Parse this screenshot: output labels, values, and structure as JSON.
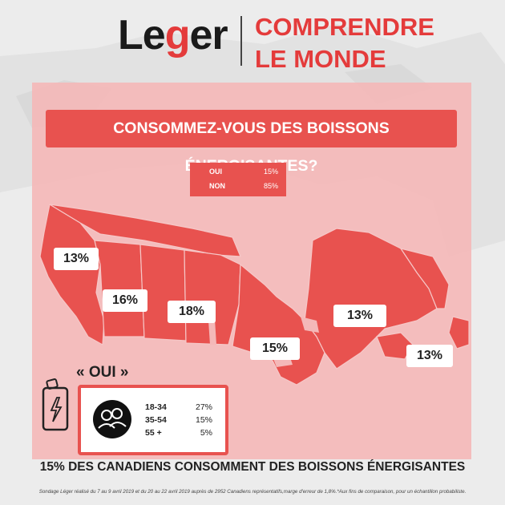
{
  "header": {
    "logo_prefix": "Le",
    "logo_accent": "g",
    "logo_suffix": "er",
    "tagline_line1": "COMPRENDRE",
    "tagline_line2": "LE MONDE",
    "brand_color": "#e43b3b"
  },
  "question": "CONSOMMEZ-VOUS DES BOISSONS ÉNERGISANTES?",
  "summary": [
    {
      "label": "OUI",
      "value": "15%"
    },
    {
      "label": "NON",
      "value": "85%"
    }
  ],
  "regions": [
    {
      "name": "british-columbia",
      "value": "13%"
    },
    {
      "name": "alberta",
      "value": "16%"
    },
    {
      "name": "saskatchewan-manitoba",
      "value": "18%"
    },
    {
      "name": "ontario",
      "value": "15%"
    },
    {
      "name": "quebec",
      "value": "13%"
    },
    {
      "name": "atlantic",
      "value": "13%"
    }
  ],
  "oui_title": "« OUI »",
  "age_groups": [
    {
      "range": "18-34",
      "value": "27%"
    },
    {
      "range": "35-54",
      "value": "15%"
    },
    {
      "range": "55 +",
      "value": "5%"
    }
  ],
  "headline": "15% DES CANADIENS CONSOMMENT DES BOISSONS ÉNERGISANTES",
  "footnote": "Sondage Léger réalisé du 7 au 9 avril 2019 et du 20 au 22 avril 2019 auprès de 2952 Canadiens représentatifs,marge d'erreur de 1,8%.*Aux fins de comparaison, pour un échantillon probabiliste.",
  "colors": {
    "panel": "#f4b8b8",
    "accent": "#e8524f",
    "map": "#e8524f"
  }
}
